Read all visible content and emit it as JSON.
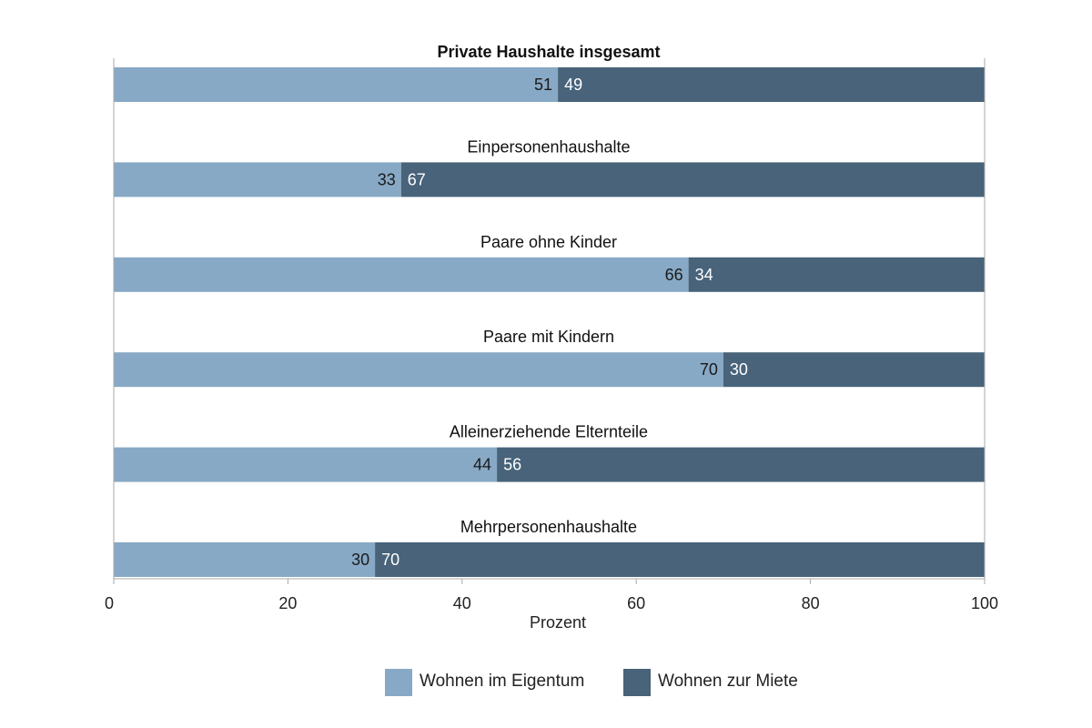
{
  "chart_data": {
    "type": "bar",
    "orientation": "horizontal",
    "stacked": true,
    "categories": [
      "Private Haushalte insgesamt",
      "Einpersonenhaushalte",
      "Paare ohne Kinder",
      "Paare mit Kindern",
      "Alleinerziehende Elternteile",
      "Mehrpersonenhaushalte"
    ],
    "series": [
      {
        "name": "Wohnen im Eigentum",
        "values": [
          51,
          33,
          66,
          70,
          44,
          30
        ],
        "color": "#87a9c5"
      },
      {
        "name": "Wohnen zur Miete",
        "values": [
          49,
          67,
          34,
          30,
          56,
          70
        ],
        "color": "#48637a"
      }
    ],
    "xlabel": "Prozent",
    "xlim": [
      0,
      100
    ],
    "xticks": [
      "0",
      "20",
      "40",
      "60",
      "80",
      "100"
    ],
    "grid": false,
    "legend": "bottom"
  }
}
